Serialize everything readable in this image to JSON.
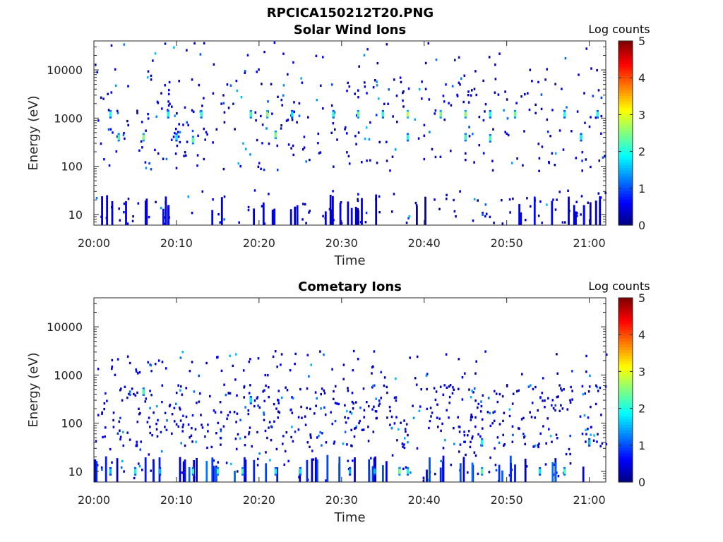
{
  "figure_title": "RPCICA150212T20.PNG",
  "chart_data": [
    {
      "type": "heatmap",
      "title": "Solar Wind Ions",
      "xlabel": "Time",
      "ylabel": "Energy (eV)",
      "x_range": [
        "20:00",
        "21:02"
      ],
      "x_ticks": [
        "20:00",
        "20:10",
        "20:20",
        "20:30",
        "20:40",
        "20:50",
        "21:00"
      ],
      "y_scale": "log",
      "y_range": [
        6,
        40000
      ],
      "y_ticks": [
        "10",
        "100",
        "1000",
        "10000"
      ],
      "colorbar": {
        "label": "Log counts",
        "range": [
          0,
          5
        ],
        "ticks": [
          "0",
          "1",
          "2",
          "3",
          "4",
          "5"
        ],
        "colormap": "jet"
      },
      "notes": "Sparse counts; bursts near 1000 eV and 300-500 eV (log counts ~2-3) roughly every 3-4 min; low-energy streaks below 30 eV",
      "bursts": [
        {
          "t": "20:02",
          "e": 1200,
          "v": 2.0
        },
        {
          "t": "20:03",
          "e": 400,
          "v": 2.3
        },
        {
          "t": "20:06",
          "e": 400,
          "v": 2.6
        },
        {
          "t": "20:09",
          "e": 1200,
          "v": 2.0
        },
        {
          "t": "20:10",
          "e": 400,
          "v": 1.8
        },
        {
          "t": "20:12",
          "e": 350,
          "v": 2.3
        },
        {
          "t": "20:13",
          "e": 1200,
          "v": 2.0
        },
        {
          "t": "20:19",
          "e": 1200,
          "v": 2.2
        },
        {
          "t": "20:21",
          "e": 1200,
          "v": 2.6
        },
        {
          "t": "20:22",
          "e": 450,
          "v": 2.5
        },
        {
          "t": "20:24",
          "e": 1200,
          "v": 1.8
        },
        {
          "t": "20:29",
          "e": 1200,
          "v": 2.0
        },
        {
          "t": "20:32",
          "e": 1200,
          "v": 2.4
        },
        {
          "t": "20:35",
          "e": 1200,
          "v": 2.0
        },
        {
          "t": "20:38",
          "e": 1200,
          "v": 2.8
        },
        {
          "t": "20:38",
          "e": 400,
          "v": 2.0
        },
        {
          "t": "20:42",
          "e": 1200,
          "v": 2.5
        },
        {
          "t": "20:45",
          "e": 1200,
          "v": 2.6
        },
        {
          "t": "20:45",
          "e": 400,
          "v": 2.2
        },
        {
          "t": "20:48",
          "e": 1200,
          "v": 2.0
        },
        {
          "t": "20:48",
          "e": 380,
          "v": 2.2
        },
        {
          "t": "20:51",
          "e": 1200,
          "v": 2.4
        },
        {
          "t": "20:57",
          "e": 1200,
          "v": 2.0
        },
        {
          "t": "20:59",
          "e": 400,
          "v": 1.8
        },
        {
          "t": "21:01",
          "e": 1200,
          "v": 2.0
        }
      ]
    },
    {
      "type": "heatmap",
      "title": "Cometary Ions",
      "xlabel": "Time",
      "ylabel": "Energy (eV)",
      "x_range": [
        "20:00",
        "21:02"
      ],
      "x_ticks": [
        "20:00",
        "20:10",
        "20:20",
        "20:30",
        "20:40",
        "20:50",
        "21:00"
      ],
      "y_scale": "log",
      "y_range": [
        6,
        40000
      ],
      "y_ticks": [
        "10",
        "100",
        "1000",
        "10000"
      ],
      "colorbar": {
        "label": "Log counts",
        "range": [
          0,
          5
        ],
        "ticks": [
          "0",
          "1",
          "2",
          "3",
          "4",
          "5"
        ],
        "colormap": "jet"
      },
      "notes": "Counts concentrated between 30 and 600 eV with low-energy streaks (~10 eV) reaching log counts ~2-2.5; sparse points near 1000-2000 eV",
      "bursts": [
        {
          "t": "20:02",
          "e": 10,
          "v": 1.6
        },
        {
          "t": "20:05",
          "e": 10,
          "v": 2.0
        },
        {
          "t": "20:06",
          "e": 450,
          "v": 2.2
        },
        {
          "t": "20:08",
          "e": 10,
          "v": 1.5
        },
        {
          "t": "20:12",
          "e": 10,
          "v": 2.0
        },
        {
          "t": "20:15",
          "e": 10,
          "v": 2.2
        },
        {
          "t": "20:18",
          "e": 10,
          "v": 2.3
        },
        {
          "t": "20:19",
          "e": 300,
          "v": 1.8
        },
        {
          "t": "20:22",
          "e": 10,
          "v": 2.0
        },
        {
          "t": "20:25",
          "e": 10,
          "v": 1.8
        },
        {
          "t": "20:31",
          "e": 10,
          "v": 1.5
        },
        {
          "t": "20:34",
          "e": 10,
          "v": 1.6
        },
        {
          "t": "20:37",
          "e": 10,
          "v": 2.5
        },
        {
          "t": "20:38",
          "e": 10,
          "v": 2.0
        },
        {
          "t": "20:47",
          "e": 10,
          "v": 2.4
        },
        {
          "t": "20:47",
          "e": 40,
          "v": 2.0
        },
        {
          "t": "20:54",
          "e": 10,
          "v": 1.8
        },
        {
          "t": "20:57",
          "e": 10,
          "v": 2.2
        },
        {
          "t": "21:00",
          "e": 40,
          "v": 1.6
        }
      ]
    }
  ]
}
